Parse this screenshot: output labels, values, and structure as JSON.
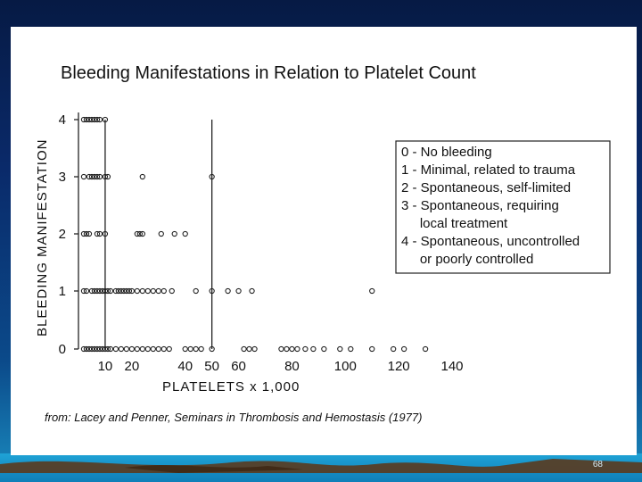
{
  "slide": {
    "page_number": "68"
  },
  "chart_data": {
    "type": "scatter",
    "title": "Bleeding Manifestations in Relation to Platelet Count",
    "xlabel": "PLATELETS x 1,000",
    "ylabel": "BLEEDING MANIFESTATION",
    "x_ticks": [
      10,
      20,
      40,
      50,
      60,
      80,
      100,
      120,
      140
    ],
    "x_tick_labels": [
      "10",
      "20",
      "40",
      "50",
      "60",
      "80",
      "100",
      "120",
      "140"
    ],
    "y_ticks": [
      0,
      1,
      2,
      3,
      4
    ],
    "y_tick_labels": [
      "0",
      "1",
      "2",
      "3",
      "4"
    ],
    "xlim": [
      0,
      140
    ],
    "ylim": [
      0,
      4
    ],
    "vertical_reference_lines": [
      10,
      50
    ],
    "legend_position": "right",
    "legend": [
      "0 - No bleeding",
      "1 - Minimal, related to trauma",
      "2 - Spontaneous, self-limited",
      "3 - Spontaneous, requiring",
      "     local treatment",
      "4 - Spontaneous, uncontrolled",
      "     or poorly controlled"
    ],
    "citation": "from: Lacey and Penner, Seminars in Thrombosis and Hemostasis (1977)",
    "points": [
      {
        "x": 2,
        "y": 4
      },
      {
        "x": 3,
        "y": 4
      },
      {
        "x": 4,
        "y": 4
      },
      {
        "x": 5,
        "y": 4
      },
      {
        "x": 6,
        "y": 4
      },
      {
        "x": 7,
        "y": 4
      },
      {
        "x": 8,
        "y": 4
      },
      {
        "x": 10,
        "y": 4
      },
      {
        "x": 2,
        "y": 3
      },
      {
        "x": 4,
        "y": 3
      },
      {
        "x": 5,
        "y": 3
      },
      {
        "x": 6,
        "y": 3
      },
      {
        "x": 7,
        "y": 3
      },
      {
        "x": 8,
        "y": 3
      },
      {
        "x": 10,
        "y": 3
      },
      {
        "x": 11,
        "y": 3
      },
      {
        "x": 24,
        "y": 3
      },
      {
        "x": 50,
        "y": 3
      },
      {
        "x": 2,
        "y": 2
      },
      {
        "x": 3,
        "y": 2
      },
      {
        "x": 4,
        "y": 2
      },
      {
        "x": 7,
        "y": 2
      },
      {
        "x": 8,
        "y": 2
      },
      {
        "x": 10,
        "y": 2
      },
      {
        "x": 22,
        "y": 2
      },
      {
        "x": 23,
        "y": 2
      },
      {
        "x": 24,
        "y": 2
      },
      {
        "x": 31,
        "y": 2
      },
      {
        "x": 36,
        "y": 2
      },
      {
        "x": 40,
        "y": 2
      },
      {
        "x": 2,
        "y": 1
      },
      {
        "x": 3,
        "y": 1
      },
      {
        "x": 5,
        "y": 1
      },
      {
        "x": 6,
        "y": 1
      },
      {
        "x": 7,
        "y": 1
      },
      {
        "x": 8,
        "y": 1
      },
      {
        "x": 9,
        "y": 1
      },
      {
        "x": 10,
        "y": 1
      },
      {
        "x": 11,
        "y": 1
      },
      {
        "x": 12,
        "y": 1
      },
      {
        "x": 14,
        "y": 1
      },
      {
        "x": 15,
        "y": 1
      },
      {
        "x": 16,
        "y": 1
      },
      {
        "x": 17,
        "y": 1
      },
      {
        "x": 18,
        "y": 1
      },
      {
        "x": 19,
        "y": 1
      },
      {
        "x": 20,
        "y": 1
      },
      {
        "x": 22,
        "y": 1
      },
      {
        "x": 24,
        "y": 1
      },
      {
        "x": 26,
        "y": 1
      },
      {
        "x": 28,
        "y": 1
      },
      {
        "x": 30,
        "y": 1
      },
      {
        "x": 32,
        "y": 1
      },
      {
        "x": 35,
        "y": 1
      },
      {
        "x": 44,
        "y": 1
      },
      {
        "x": 50,
        "y": 1
      },
      {
        "x": 56,
        "y": 1
      },
      {
        "x": 60,
        "y": 1
      },
      {
        "x": 65,
        "y": 1
      },
      {
        "x": 110,
        "y": 1
      },
      {
        "x": 2,
        "y": 0
      },
      {
        "x": 3,
        "y": 0
      },
      {
        "x": 4,
        "y": 0
      },
      {
        "x": 5,
        "y": 0
      },
      {
        "x": 6,
        "y": 0
      },
      {
        "x": 7,
        "y": 0
      },
      {
        "x": 8,
        "y": 0
      },
      {
        "x": 9,
        "y": 0
      },
      {
        "x": 10,
        "y": 0
      },
      {
        "x": 11,
        "y": 0
      },
      {
        "x": 12,
        "y": 0
      },
      {
        "x": 14,
        "y": 0
      },
      {
        "x": 16,
        "y": 0
      },
      {
        "x": 18,
        "y": 0
      },
      {
        "x": 20,
        "y": 0
      },
      {
        "x": 22,
        "y": 0
      },
      {
        "x": 24,
        "y": 0
      },
      {
        "x": 26,
        "y": 0
      },
      {
        "x": 28,
        "y": 0
      },
      {
        "x": 30,
        "y": 0
      },
      {
        "x": 32,
        "y": 0
      },
      {
        "x": 34,
        "y": 0
      },
      {
        "x": 40,
        "y": 0
      },
      {
        "x": 42,
        "y": 0
      },
      {
        "x": 44,
        "y": 0
      },
      {
        "x": 46,
        "y": 0
      },
      {
        "x": 50,
        "y": 0
      },
      {
        "x": 62,
        "y": 0
      },
      {
        "x": 64,
        "y": 0
      },
      {
        "x": 66,
        "y": 0
      },
      {
        "x": 76,
        "y": 0
      },
      {
        "x": 78,
        "y": 0
      },
      {
        "x": 80,
        "y": 0
      },
      {
        "x": 82,
        "y": 0
      },
      {
        "x": 85,
        "y": 0
      },
      {
        "x": 88,
        "y": 0
      },
      {
        "x": 92,
        "y": 0
      },
      {
        "x": 98,
        "y": 0
      },
      {
        "x": 102,
        "y": 0
      },
      {
        "x": 110,
        "y": 0
      },
      {
        "x": 118,
        "y": 0
      },
      {
        "x": 122,
        "y": 0
      },
      {
        "x": 130,
        "y": 0
      }
    ]
  }
}
